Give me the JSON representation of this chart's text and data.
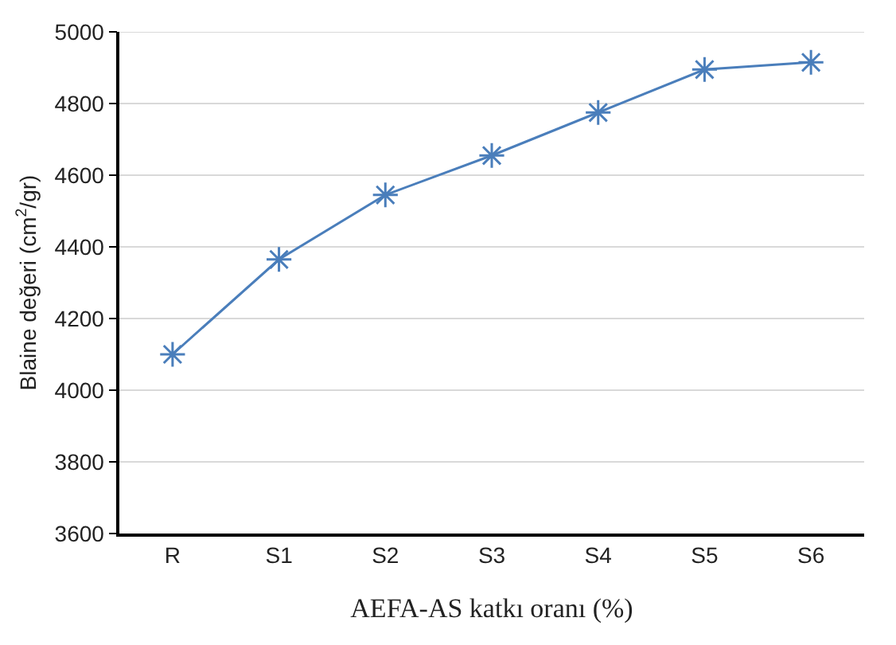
{
  "chart_data": {
    "type": "line",
    "xlabel": "AEFA-AS katkı oranı (%)",
    "ylabel": "Blaine değeri (cm$^{2}$/gr)",
    "categories": [
      "R",
      "S1",
      "S2",
      "S3",
      "S4",
      "S5",
      "S6"
    ],
    "series": [
      {
        "color": "#4a7ebb",
        "values": [
          4100,
          4365,
          4545,
          4655,
          4775,
          4895,
          4915
        ]
      }
    ],
    "ylim": [
      3600,
      5000
    ],
    "yticks": [
      3600,
      3800,
      4000,
      4200,
      4400,
      4600,
      4800,
      5000
    ],
    "grid": "y",
    "legend": false,
    "marker": "cross",
    "line_style": "solid"
  }
}
